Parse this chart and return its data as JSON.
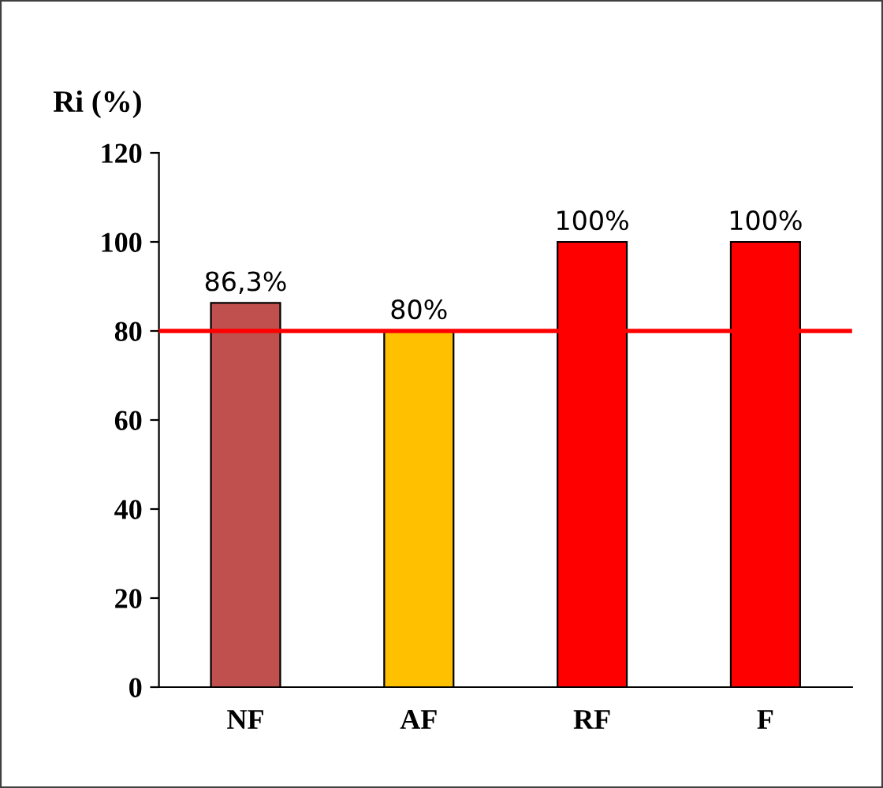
{
  "chart_data": {
    "type": "bar",
    "ylabel": "Ri (%)",
    "categories": [
      "NF",
      "AF",
      "RF",
      "F"
    ],
    "values": [
      86.3,
      80,
      100,
      100
    ],
    "colors": [
      "#c0504d",
      "#ffc000",
      "#ff0000",
      "#ff0000"
    ],
    "value_labels": [
      "86,3%",
      "80%",
      "100%",
      "100%"
    ],
    "ylim": [
      0,
      120
    ],
    "yticks": [
      0,
      20,
      40,
      60,
      80,
      100,
      120
    ],
    "grid": false,
    "legend": false,
    "ref_lines": [
      {
        "axis": "y",
        "value": 80,
        "color": "#ff0000",
        "line_style": "solid"
      }
    ]
  }
}
